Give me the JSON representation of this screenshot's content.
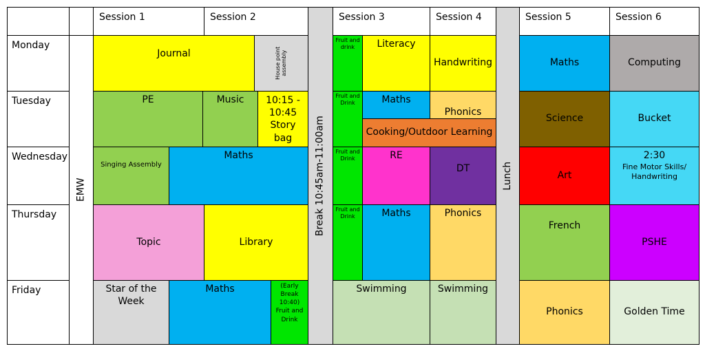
{
  "headers": {
    "session1": "Session 1",
    "session2": "Session 2",
    "session3": "Session 3",
    "session4": "Session 4",
    "session5": "Session 5",
    "session6": "Session 6"
  },
  "days": {
    "monday": "Monday",
    "tuesday": "Tuesday",
    "wednesday": "Wednesday",
    "thursday": "Thursday",
    "friday": "Friday"
  },
  "bands": {
    "emw": "EMW",
    "break": "Break 10:45am-11:00am",
    "lunch": "Lunch"
  },
  "monday": {
    "journal": "Journal",
    "house_point": "House point assembly",
    "fruit": "Fruit and drink",
    "literacy": "Literacy",
    "handwriting": "Handwriting",
    "maths": "Maths",
    "computing": "Computing"
  },
  "tuesday": {
    "pe": "PE",
    "music": "Music",
    "story_bag": "10:15 - 10:45 Story bag",
    "fruit": "Fruit and Drink",
    "maths": "Maths",
    "phonics": "Phonics",
    "cooking": "Cooking/Outdoor Learning",
    "science": "Science",
    "bucket": "Bucket"
  },
  "wednesday": {
    "singing": "Singing Assembly",
    "maths": "Maths",
    "fruit": "Fruit and Drink",
    "re": "RE",
    "dt": "DT",
    "art": "Art",
    "fine_motor_time": "2:30",
    "fine_motor": "Fine Motor Skills/ Handwriting"
  },
  "thursday": {
    "topic": "Topic",
    "library": "Library",
    "fruit": "Fruit and Drink",
    "maths": "Maths",
    "phonics": "Phonics",
    "french": "French",
    "pshe": "PSHE"
  },
  "friday": {
    "star": "Star of the Week",
    "maths": "Maths",
    "early_break": "(Early Break 10:40) Fruit and Drink",
    "swimming1": "Swimming",
    "swimming2": "Swimming",
    "phonics": "Phonics",
    "golden": "Golden Time"
  },
  "colors": {
    "yellow": "#ffff00",
    "grey": "#d9d9d9",
    "green": "#00e600",
    "light_green": "#92d050",
    "blue": "#00b0f0",
    "dark_grey": "#aeaaaa",
    "orange": "#ffd966",
    "burnt_orange": "#ed7d31",
    "brown": "#7f6000",
    "cyan": "#45d8f5",
    "magenta": "#ff33cc",
    "purple": "#7030a0",
    "red": "#ff0000",
    "pink": "#f4a0d8",
    "violet": "#cc00ff",
    "pale_green": "#c5e0b4",
    "mint": "#e2efda"
  }
}
